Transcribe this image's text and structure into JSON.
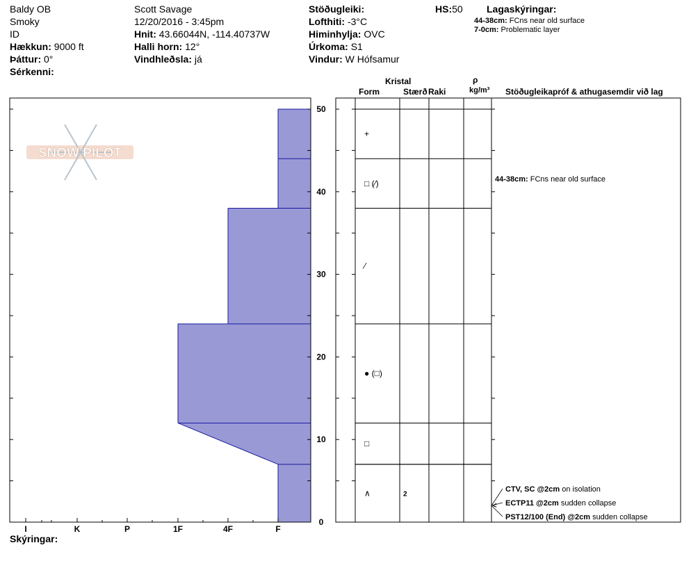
{
  "site": {
    "name": "Baldy OB",
    "range": "Smoky",
    "state": "ID",
    "elevation_label": "Hækkun:",
    "elevation": "9000 ft",
    "aspect_label": "Þáttur:",
    "aspect": "0°",
    "features_label": "Sérkenni:"
  },
  "observer": {
    "name": "Scott Savage",
    "datetime": "12/20/2016 - 3:45pm",
    "coords_label": "Hnit:",
    "coords": "43.66044N, -114.40737W",
    "slope_label": "Halli horn:",
    "slope": "12°",
    "wind_loading_label": "Vindhleðsla:",
    "wind_loading": "já"
  },
  "conditions": {
    "stability_label": "Stöðugleiki:",
    "stability": "",
    "air_temp_label": "Lofthiti:",
    "air_temp": "-3°C",
    "sky_label": "Himinhylja:",
    "sky": "OVC",
    "precip_label": "Úrkoma:",
    "precip": "S1",
    "wind_label": "Vindur:",
    "wind": "W Hófsamur"
  },
  "hs": {
    "label": "HS:",
    "value": "50"
  },
  "layer_notes": {
    "title": "Lagaskýringar:",
    "items": [
      {
        "range": "44-38cm:",
        "text": "FCns near old surface"
      },
      {
        "range": "7-0cm:",
        "text": "Problematic layer"
      }
    ]
  },
  "columns": {
    "crystal": "Kristal",
    "form": "Form",
    "size": "Stærð",
    "moisture": "Raki",
    "rho": "ρ",
    "density_unit": "kg/m³",
    "tests": "Stöðugleikapróf & athugasemdir við lag"
  },
  "logo": {
    "text": "SNOW PILOT"
  },
  "footer": {
    "notes_label": "Skýringar:"
  },
  "chart_data": {
    "type": "bar",
    "orientation": "horizontal-step",
    "xlabel": "",
    "ylabel": "",
    "ylim": [
      0,
      50
    ],
    "y_ticks": [
      0,
      10,
      20,
      30,
      40,
      50
    ],
    "hardness_categories": [
      "I",
      "K",
      "P",
      "1F",
      "4F",
      "F"
    ],
    "layers": [
      {
        "top": 50,
        "bottom": 44,
        "hardness_top": "F",
        "hardness_bottom": "F",
        "form": "+",
        "size": "",
        "moisture": "",
        "density": ""
      },
      {
        "top": 44,
        "bottom": 38,
        "hardness_top": "F",
        "hardness_bottom": "F",
        "form": "□ (⁄)",
        "size": "",
        "moisture": "",
        "density": ""
      },
      {
        "top": 38,
        "bottom": 24,
        "hardness_top": "4F",
        "hardness_bottom": "4F",
        "form": "⁄",
        "size": "",
        "moisture": "",
        "density": ""
      },
      {
        "top": 24,
        "bottom": 12,
        "hardness_top": "1F",
        "hardness_bottom": "1F",
        "form": "● (□)",
        "size": "",
        "moisture": "",
        "density": ""
      },
      {
        "top": 12,
        "bottom": 7,
        "hardness_top": "1F",
        "hardness_bottom": "F",
        "form": "□",
        "size": "",
        "moisture": "",
        "density": ""
      },
      {
        "top": 7,
        "bottom": 0,
        "hardness_top": "F",
        "hardness_bottom": "F",
        "form": "∧",
        "size": "2",
        "moisture": "",
        "density": ""
      }
    ],
    "layer_comments": [
      {
        "depth": 41,
        "range": "44-38cm:",
        "text": "FCns near old surface"
      }
    ],
    "tests": [
      {
        "depth": 2,
        "code": "CTV, SC @2cm",
        "comment": "on isolation"
      },
      {
        "depth": 2,
        "code": "ECTP11 @2cm",
        "comment": "sudden collapse"
      },
      {
        "depth": 2,
        "code": "PST12/100 (End) @2cm",
        "comment": "sudden collapse"
      }
    ],
    "colors": {
      "fill": "#9999d6",
      "stroke": "#1a1aa0"
    }
  }
}
